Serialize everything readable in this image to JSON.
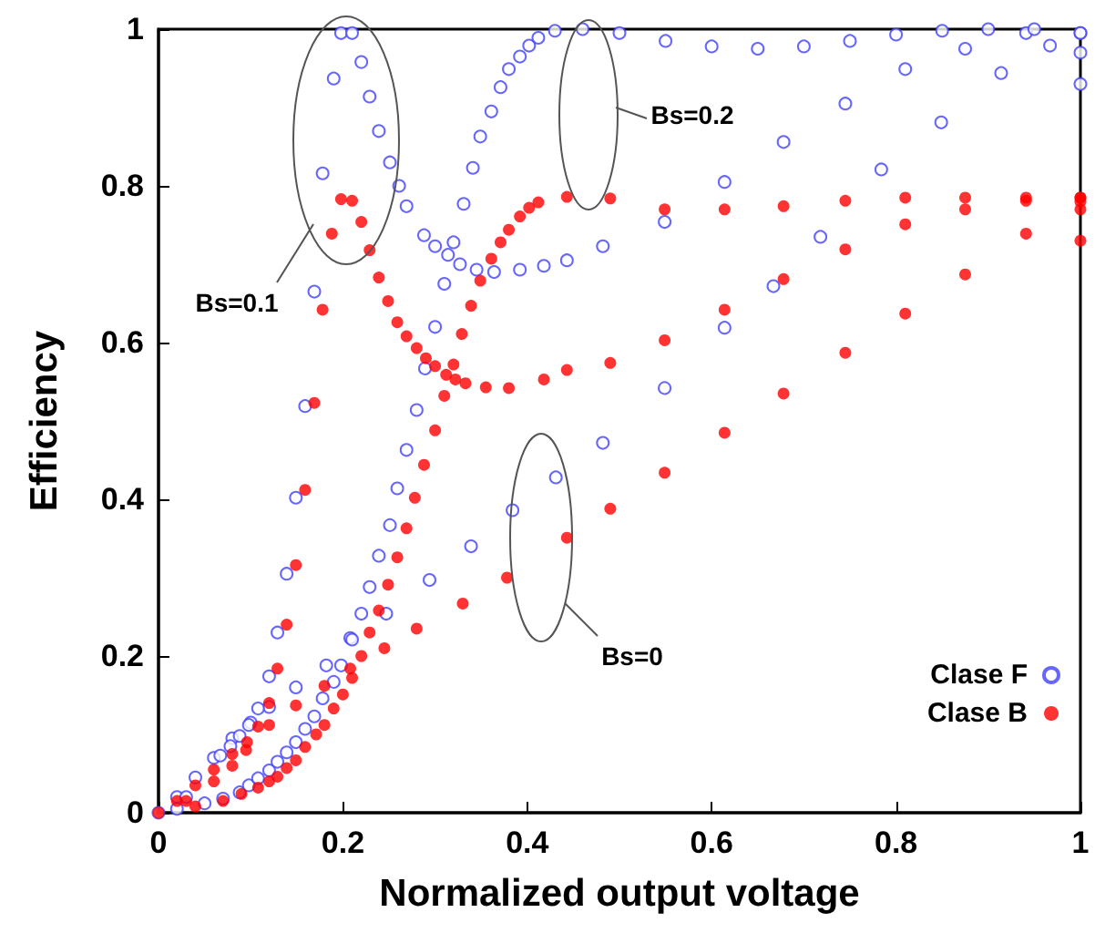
{
  "chart_data": {
    "type": "scatter",
    "xlabel": "Normalized output voltage",
    "ylabel": "Efficiency",
    "xlim": [
      0,
      1
    ],
    "ylim": [
      0,
      1
    ],
    "xticks": [
      0,
      0.2,
      0.4,
      0.6,
      0.8,
      1
    ],
    "yticks": [
      0,
      0.2,
      0.4,
      0.6,
      0.8,
      1
    ],
    "grid": false,
    "legend": "bottom right",
    "marker": "circle",
    "annotations": [
      "Bs=0.1",
      "Bs=0.2",
      "Bs=0"
    ],
    "series": [
      {
        "name": "Clase F",
        "color": "#4040ff",
        "x": [
          0,
          0.02,
          0.04,
          0.06,
          0.08,
          0.1,
          0.12,
          0.149,
          0.182,
          0.208,
          0.247,
          0.294,
          0.339,
          0.384,
          0.431,
          0.482,
          0.549,
          0.614,
          0.667,
          0.718,
          0.784,
          0.849,
          0.914,
          0.967,
          1,
          0.03,
          0.067,
          0.078,
          0.088,
          0.098,
          0.108,
          0.12,
          0.129,
          0.139,
          0.149,
          0.159,
          0.169,
          0.178,
          0.19,
          0.198,
          0.21,
          0.22,
          0.229,
          0.239,
          0.251,
          0.261,
          0.269,
          0.288,
          0.3,
          0.314,
          0.327,
          0.345,
          0.364,
          0.392,
          0.418,
          0.443,
          0.482,
          0.549,
          0.614,
          0.678,
          0.745,
          0.81,
          0.875,
          0.941,
          1,
          0.02,
          0.05,
          0.07,
          0.088,
          0.098,
          0.108,
          0.12,
          0.129,
          0.139,
          0.149,
          0.159,
          0.169,
          0.178,
          0.19,
          0.198,
          0.21,
          0.22,
          0.229,
          0.239,
          0.251,
          0.259,
          0.269,
          0.28,
          0.289,
          0.3,
          0.31,
          0.32,
          0.331,
          0.341,
          0.349,
          0.361,
          0.371,
          0.38,
          0.392,
          0.402,
          0.412,
          0.43,
          0.46,
          0.5,
          0.55,
          0.6,
          0.65,
          0.7,
          0.75,
          0.8,
          0.85,
          0.9,
          0.95,
          1,
          1
        ],
        "values": [
          0,
          0.02,
          0.045,
          0.07,
          0.095,
          0.115,
          0.135,
          0.16,
          0.188,
          0.223,
          0.254,
          0.297,
          0.34,
          0.386,
          0.428,
          0.472,
          0.542,
          0.619,
          0.672,
          0.735,
          0.821,
          0.881,
          0.944,
          0.979,
          0.995,
          0.02,
          0.073,
          0.085,
          0.098,
          0.112,
          0.133,
          0.174,
          0.23,
          0.305,
          0.402,
          0.519,
          0.665,
          0.816,
          0.937,
          0.995,
          0.995,
          0.958,
          0.914,
          0.87,
          0.83,
          0.8,
          0.774,
          0.737,
          0.723,
          0.712,
          0.7,
          0.693,
          0.69,
          0.693,
          0.698,
          0.705,
          0.723,
          0.754,
          0.805,
          0.856,
          0.905,
          0.949,
          0.975,
          0.995,
          0.995,
          0.005,
          0.012,
          0.018,
          0.026,
          0.035,
          0.044,
          0.054,
          0.065,
          0.077,
          0.09,
          0.107,
          0.123,
          0.146,
          0.167,
          0.188,
          0.221,
          0.254,
          0.288,
          0.328,
          0.367,
          0.414,
          0.463,
          0.514,
          0.567,
          0.62,
          0.675,
          0.728,
          0.777,
          0.823,
          0.863,
          0.895,
          0.926,
          0.949,
          0.965,
          0.979,
          0.989,
          0.998,
          1,
          0.995,
          0.985,
          0.978,
          0.975,
          0.978,
          0.985,
          0.993,
          0.998,
          1,
          1,
          0.97,
          0.93
        ]
      },
      {
        "name": "Clase B",
        "color": "#ff0000",
        "x": [
          0,
          0.02,
          0.04,
          0.06,
          0.08,
          0.096,
          0.12,
          0.149,
          0.18,
          0.208,
          0.245,
          0.28,
          0.33,
          0.378,
          0.443,
          0.49,
          0.549,
          0.614,
          0.678,
          0.745,
          0.81,
          0.875,
          0.941,
          1,
          0.03,
          0.06,
          0.08,
          0.095,
          0.108,
          0.12,
          0.129,
          0.139,
          0.149,
          0.159,
          0.169,
          0.178,
          0.188,
          0.198,
          0.21,
          0.22,
          0.229,
          0.239,
          0.249,
          0.259,
          0.269,
          0.28,
          0.29,
          0.3,
          0.312,
          0.322,
          0.333,
          0.355,
          0.38,
          0.418,
          0.443,
          0.49,
          0.549,
          0.614,
          0.678,
          0.745,
          0.81,
          0.875,
          0.941,
          1,
          0.04,
          0.07,
          0.09,
          0.108,
          0.12,
          0.129,
          0.139,
          0.149,
          0.159,
          0.171,
          0.18,
          0.19,
          0.2,
          0.21,
          0.22,
          0.229,
          0.239,
          0.249,
          0.259,
          0.269,
          0.278,
          0.288,
          0.3,
          0.31,
          0.32,
          0.329,
          0.339,
          0.349,
          0.361,
          0.371,
          0.38,
          0.392,
          0.402,
          0.412,
          0.443,
          0.49,
          0.549,
          0.614,
          0.678,
          0.745,
          0.81,
          0.875,
          0.941,
          1,
          1,
          1
        ],
        "values": [
          0,
          0.015,
          0.035,
          0.055,
          0.075,
          0.09,
          0.112,
          0.137,
          0.162,
          0.184,
          0.21,
          0.235,
          0.267,
          0.3,
          0.351,
          0.388,
          0.434,
          0.485,
          0.535,
          0.587,
          0.637,
          0.687,
          0.739,
          0.785,
          0.015,
          0.04,
          0.06,
          0.08,
          0.11,
          0.14,
          0.184,
          0.24,
          0.316,
          0.412,
          0.523,
          0.642,
          0.739,
          0.783,
          0.781,
          0.754,
          0.718,
          0.683,
          0.653,
          0.626,
          0.608,
          0.593,
          0.58,
          0.57,
          0.559,
          0.553,
          0.548,
          0.543,
          0.542,
          0.553,
          0.565,
          0.574,
          0.603,
          0.642,
          0.681,
          0.719,
          0.751,
          0.77,
          0.781,
          0.78,
          0.008,
          0.015,
          0.024,
          0.032,
          0.04,
          0.046,
          0.057,
          0.067,
          0.084,
          0.1,
          0.112,
          0.133,
          0.151,
          0.172,
          0.2,
          0.23,
          0.258,
          0.291,
          0.326,
          0.363,
          0.402,
          0.444,
          0.488,
          0.532,
          0.572,
          0.611,
          0.647,
          0.679,
          0.707,
          0.728,
          0.744,
          0.761,
          0.772,
          0.779,
          0.786,
          0.784,
          0.77,
          0.77,
          0.774,
          0.781,
          0.785,
          0.785,
          0.785,
          0.785,
          0.77,
          0.73
        ]
      }
    ]
  }
}
